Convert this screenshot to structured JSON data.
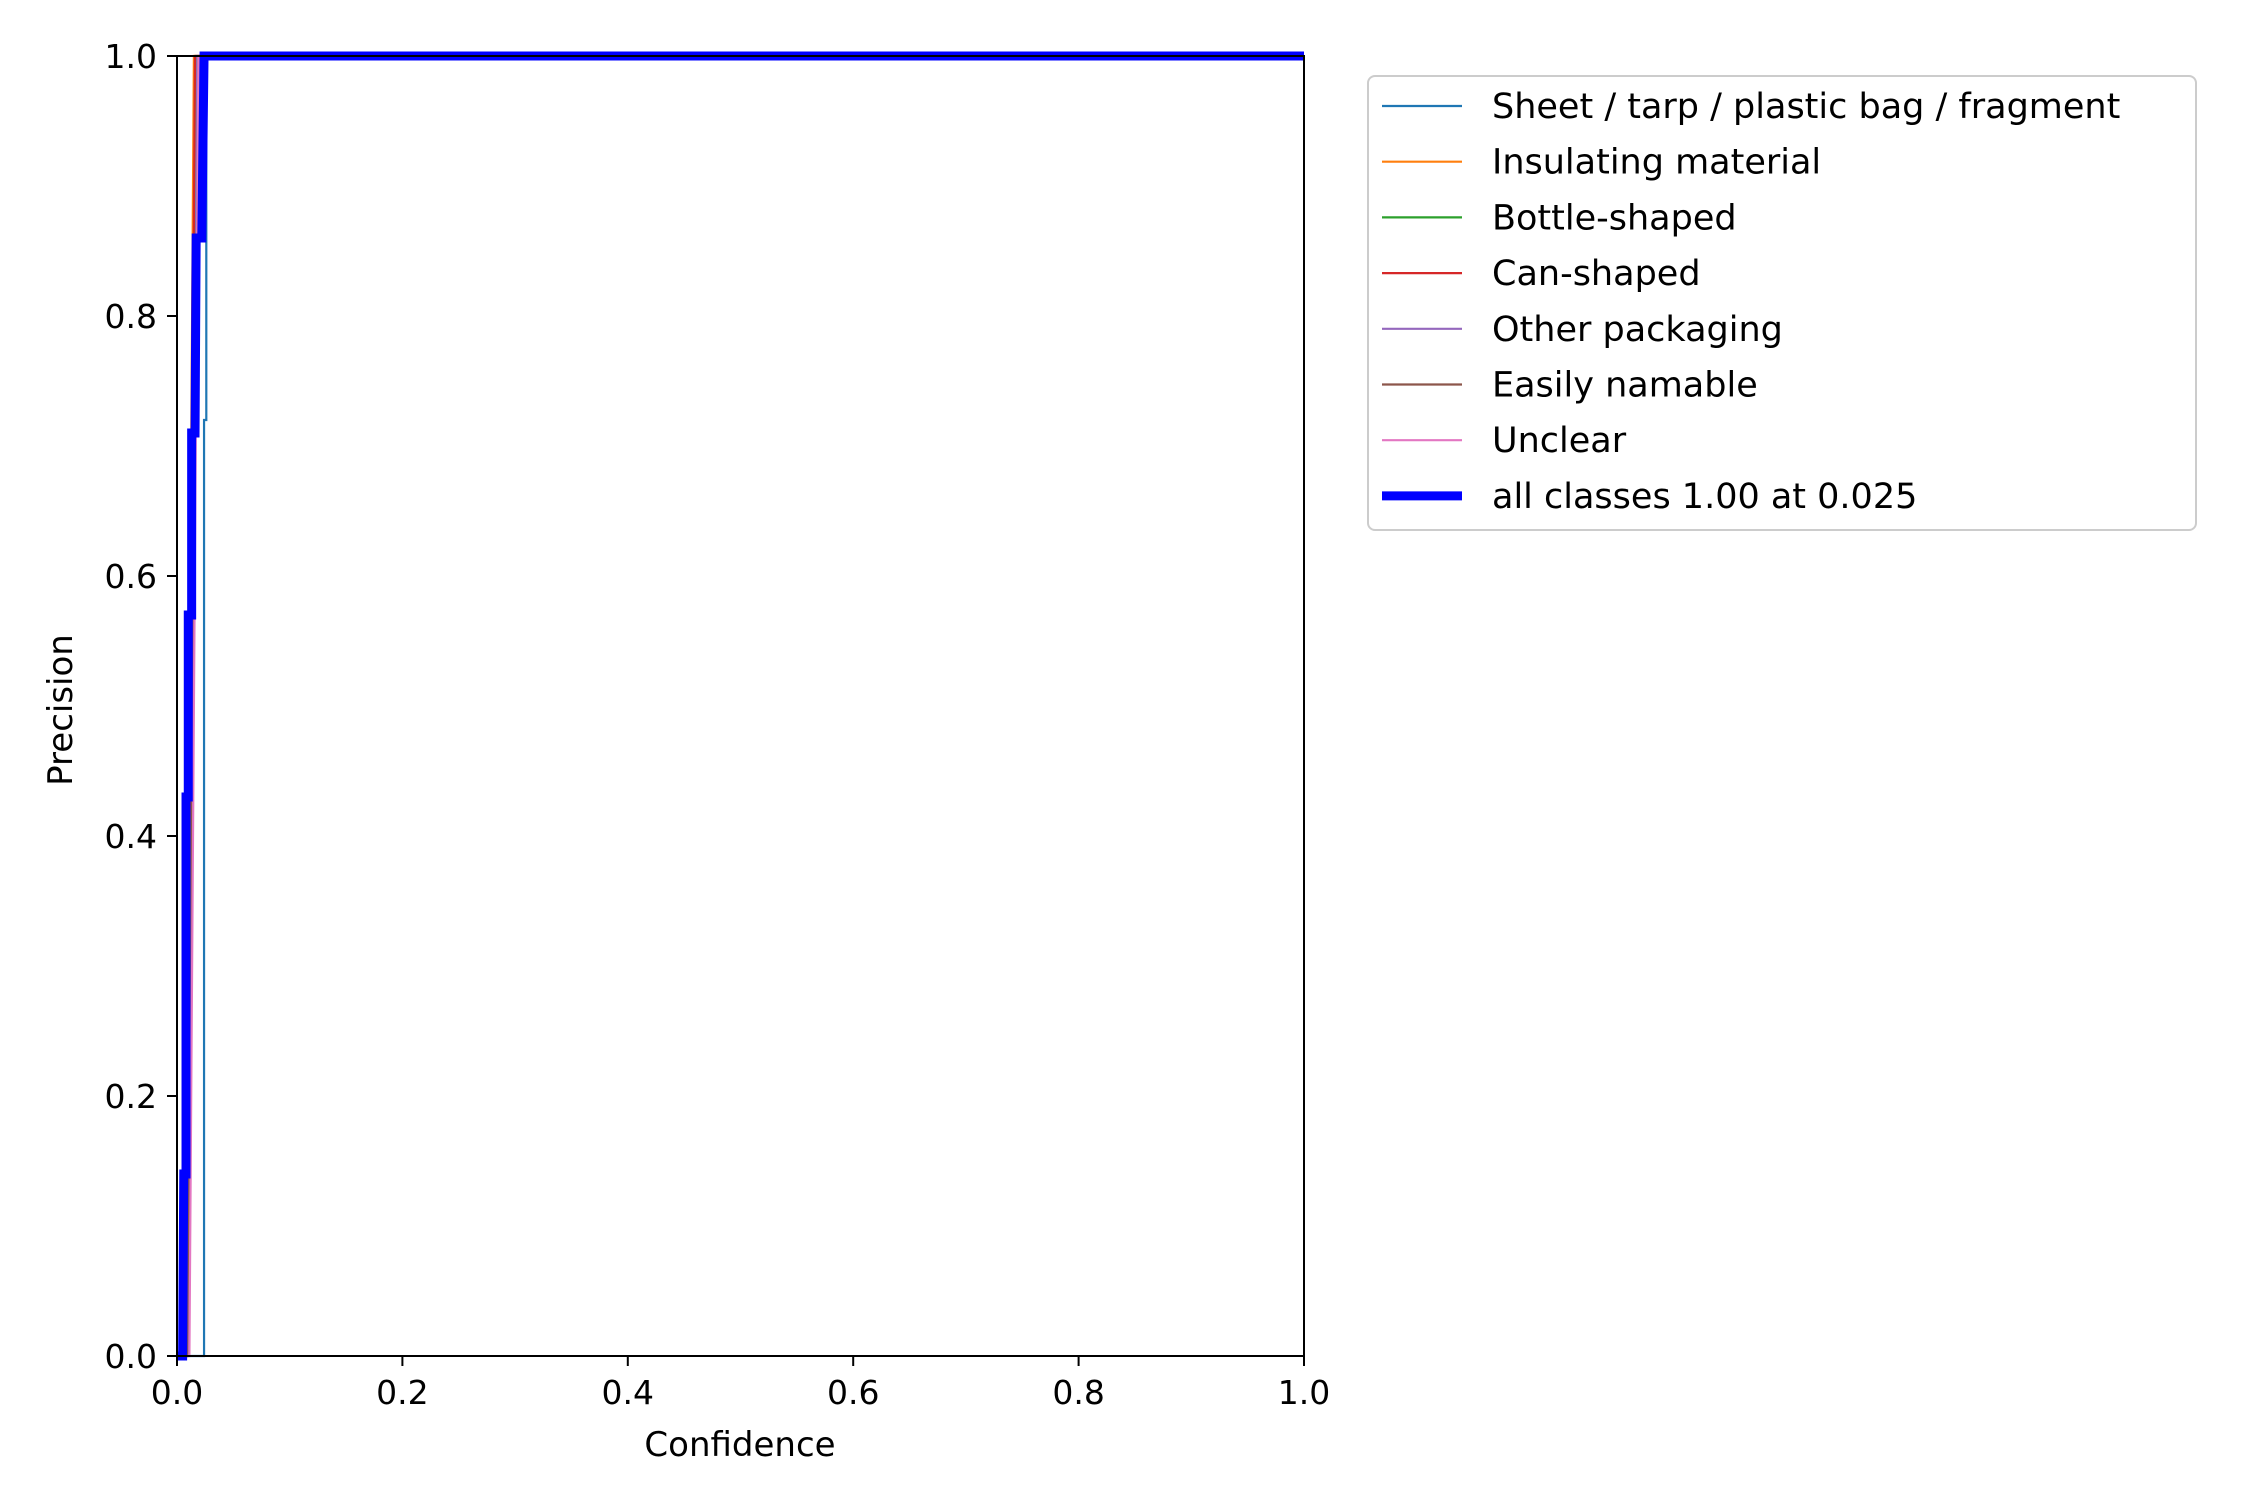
{
  "chart_data": {
    "type": "line",
    "title": "",
    "xlabel": "Confidence",
    "ylabel": "Precision",
    "xlim": [
      0,
      1
    ],
    "ylim": [
      0,
      1
    ],
    "x_ticks": [
      "0.0",
      "0.2",
      "0.4",
      "0.6",
      "0.8",
      "1.0"
    ],
    "y_ticks": [
      "0.0",
      "0.2",
      "0.4",
      "0.6",
      "0.8",
      "1.0"
    ],
    "grid": false,
    "legend_position": "outside-right-top",
    "series": [
      {
        "name": "Sheet / tarp / plastic bag / fragment",
        "color": "#1f77b4",
        "width": "thin",
        "x": [
          0.0,
          0.024,
          0.024,
          0.026,
          0.026,
          1.0
        ],
        "y": [
          0.0,
          0.0,
          0.72,
          0.72,
          1.0,
          1.0
        ]
      },
      {
        "name": "Insulating material",
        "color": "#ff7f0e",
        "width": "thin",
        "x": [
          0.0,
          0.007,
          0.015,
          1.0
        ],
        "y": [
          0.0,
          0.0,
          1.0,
          1.0
        ]
      },
      {
        "name": "Bottle-shaped",
        "color": "#2ca02c",
        "width": "thin",
        "x": [
          0.0,
          0.009,
          0.017,
          1.0
        ],
        "y": [
          0.0,
          0.0,
          1.0,
          1.0
        ]
      },
      {
        "name": "Can-shaped",
        "color": "#d62728",
        "width": "thin",
        "x": [
          0.0,
          0.008,
          0.016,
          1.0
        ],
        "y": [
          0.0,
          0.0,
          1.0,
          1.0
        ]
      },
      {
        "name": "Other packaging",
        "color": "#9467bd",
        "width": "thin",
        "x": [
          0.0,
          0.01,
          0.018,
          1.0
        ],
        "y": [
          0.0,
          0.0,
          1.0,
          1.0
        ]
      },
      {
        "name": "Easily namable",
        "color": "#8c564b",
        "width": "thin",
        "x": [
          0.0,
          0.009,
          0.019,
          1.0
        ],
        "y": [
          0.0,
          0.0,
          1.0,
          1.0
        ]
      },
      {
        "name": "Unclear",
        "color": "#e377c2",
        "width": "thin",
        "x": [
          0.0,
          0.011,
          0.019,
          1.0
        ],
        "y": [
          0.0,
          0.0,
          1.0,
          1.0
        ]
      },
      {
        "name": "all classes 1.00 at 0.025",
        "color": "#0000ff",
        "width": "thick",
        "x": [
          0.0,
          0.005,
          0.006,
          0.008,
          0.008,
          0.01,
          0.01,
          0.013,
          0.013,
          0.016,
          0.017,
          0.02,
          0.02,
          0.022,
          0.024,
          0.025,
          1.0
        ],
        "y": [
          0.0,
          0.0,
          0.14,
          0.14,
          0.43,
          0.43,
          0.57,
          0.57,
          0.71,
          0.71,
          0.86,
          0.86,
          0.86,
          0.86,
          1.0,
          1.0,
          1.0
        ]
      }
    ]
  }
}
